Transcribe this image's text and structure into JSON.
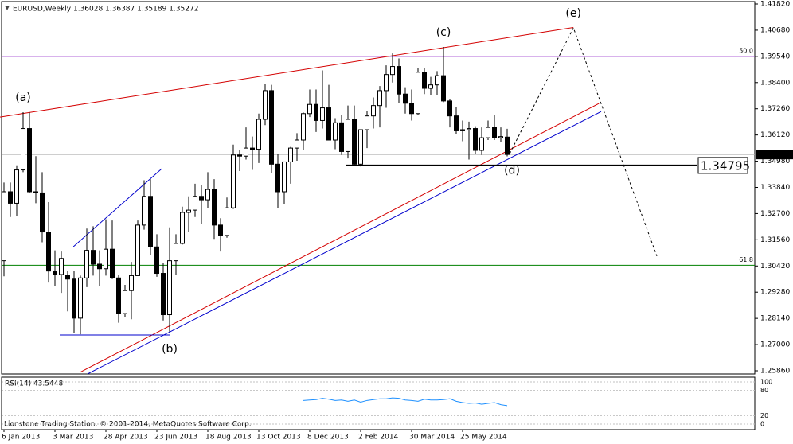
{
  "chart_data": [
    {
      "type": "candlestick",
      "title": "EURUSD,Weekly  1.36028 1.36387 1.35189 1.35272",
      "categories": [
        "6 Jan 2013",
        null,
        null,
        null,
        null,
        null,
        null,
        null,
        "3 Mar 2013",
        null,
        null,
        null,
        null,
        null,
        null,
        null,
        "28 Apr 2013",
        null,
        null,
        null,
        null,
        null,
        null,
        null,
        "23 Jun 2013",
        null,
        null,
        null,
        null,
        null,
        null,
        null,
        "18 Aug 2013",
        null,
        null,
        null,
        null,
        null,
        null,
        null,
        "13 Oct 2013",
        null,
        null,
        null,
        null,
        null,
        null,
        null,
        "8 Dec 2013",
        null,
        null,
        null,
        null,
        null,
        null,
        null,
        "2 Feb 2014",
        null,
        null,
        null,
        null,
        null,
        null,
        null,
        "30 Mar 2014",
        null,
        null,
        null,
        null,
        null,
        null,
        null,
        "25 May 2014",
        null,
        null,
        null,
        null,
        null,
        null,
        null
      ],
      "open": [
        1.3065,
        1.3365,
        1.3315,
        1.346,
        1.364,
        1.3365,
        1.336,
        1.319,
        1.302,
        1.3005,
        1.3,
        1.2985,
        1.2815,
        1.299,
        1.311,
        1.305,
        1.303,
        1.3115,
        1.299,
        1.2835,
        1.2935,
        1.3,
        1.322,
        1.3345,
        1.3125,
        1.301,
        1.283,
        1.3065,
        1.314,
        1.3275,
        1.3285,
        1.3345,
        1.333,
        1.3375,
        1.322,
        1.3175,
        1.3295,
        1.3525,
        1.352,
        1.3555,
        1.355,
        1.368,
        1.3805,
        1.3485,
        1.3365,
        1.3495,
        1.3555,
        1.359,
        1.3705,
        1.3745,
        1.3675,
        1.373,
        1.359,
        1.3665,
        1.354,
        1.368,
        1.3485,
        1.3635,
        1.3695,
        1.374,
        1.3805,
        1.3875,
        1.391,
        1.379,
        1.375,
        1.3705,
        1.3885,
        1.3815,
        1.383,
        1.387,
        1.376,
        1.3695,
        1.363,
        1.3635,
        1.364,
        1.3545,
        1.36,
        1.3645,
        1.36,
        1.36028
      ],
      "high": [
        1.3405,
        1.3405,
        1.348,
        1.3711,
        1.371,
        1.352,
        1.345,
        1.332,
        1.311,
        1.3105,
        1.302,
        1.302,
        1.3,
        1.3205,
        1.3215,
        1.311,
        1.3245,
        1.324,
        1.3005,
        1.296,
        1.306,
        1.324,
        1.3415,
        1.342,
        1.318,
        1.3055,
        1.321,
        1.318,
        1.33,
        1.3345,
        1.34,
        1.3395,
        1.345,
        1.342,
        1.325,
        1.334,
        1.357,
        1.3545,
        1.3645,
        1.3605,
        1.3705,
        1.3833,
        1.383,
        1.353,
        1.3495,
        1.356,
        1.362,
        1.371,
        1.381,
        1.381,
        1.3893,
        1.383,
        1.3685,
        1.37,
        1.374,
        1.374,
        1.362,
        1.3715,
        1.3775,
        1.3825,
        1.3915,
        1.3967,
        1.3945,
        1.382,
        1.381,
        1.3905,
        1.3905,
        1.3865,
        1.389,
        1.3995,
        1.377,
        1.3735,
        1.3675,
        1.367,
        1.365,
        1.3645,
        1.3675,
        1.37,
        1.3645,
        1.36387
      ],
      "low": [
        1.2997,
        1.3255,
        1.326,
        1.345,
        1.336,
        1.3315,
        1.3145,
        1.297,
        1.2955,
        1.2925,
        1.2845,
        1.275,
        1.2745,
        1.295,
        1.3,
        1.2955,
        1.3,
        1.2985,
        1.2795,
        1.282,
        1.281,
        1.3,
        1.32,
        1.309,
        1.2995,
        1.2805,
        1.2755,
        1.3005,
        1.3135,
        1.319,
        1.3255,
        1.3225,
        1.3295,
        1.316,
        1.3105,
        1.3165,
        1.329,
        1.3455,
        1.3505,
        1.346,
        1.349,
        1.3655,
        1.3445,
        1.3295,
        1.331,
        1.34,
        1.35,
        1.3545,
        1.369,
        1.3625,
        1.364,
        1.359,
        1.355,
        1.3525,
        1.351,
        1.348,
        1.3475,
        1.3555,
        1.364,
        1.3645,
        1.373,
        1.384,
        1.375,
        1.3705,
        1.3675,
        1.37,
        1.379,
        1.3785,
        1.3785,
        1.3755,
        1.3645,
        1.3615,
        1.3585,
        1.3505,
        1.353,
        1.3525,
        1.359,
        1.359,
        1.358,
        1.35189
      ],
      "close": [
        1.3365,
        1.3315,
        1.346,
        1.364,
        1.3365,
        1.336,
        1.319,
        1.302,
        1.3005,
        1.3075,
        1.2985,
        1.2815,
        1.299,
        1.311,
        1.305,
        1.303,
        1.3115,
        1.299,
        1.2835,
        1.2935,
        1.3,
        1.322,
        1.3345,
        1.3125,
        1.301,
        1.283,
        1.3065,
        1.314,
        1.3275,
        1.3285,
        1.3345,
        1.333,
        1.3375,
        1.322,
        1.3175,
        1.3295,
        1.3525,
        1.352,
        1.3555,
        1.355,
        1.368,
        1.3805,
        1.3485,
        1.3365,
        1.3495,
        1.3555,
        1.359,
        1.3705,
        1.3745,
        1.3675,
        1.373,
        1.359,
        1.3665,
        1.354,
        1.368,
        1.3485,
        1.3635,
        1.3695,
        1.374,
        1.3805,
        1.3875,
        1.391,
        1.379,
        1.375,
        1.3705,
        1.3885,
        1.3815,
        1.383,
        1.387,
        1.376,
        1.3695,
        1.363,
        1.3635,
        1.364,
        1.3545,
        1.36,
        1.3645,
        1.36,
        1.3605,
        1.35272
      ],
      "up_color": "#ffffff",
      "down_color": "#000000",
      "ylim": [
        1.2586,
        1.4182
      ],
      "yticks": [
        {
          "value": 1.2586,
          "label": "1.25860"
        },
        {
          "value": 1.27,
          "label": "1.27000"
        },
        {
          "value": 1.2814,
          "label": "1.28140"
        },
        {
          "value": 1.2928,
          "label": "1.29280"
        },
        {
          "value": 1.3042,
          "label": "1.30420"
        },
        {
          "value": 1.3156,
          "label": "1.31560"
        },
        {
          "value": 1.327,
          "label": "1.32700"
        },
        {
          "value": 1.3384,
          "label": "1.33840"
        },
        {
          "value": 1.3498,
          "label": "1.34980"
        },
        {
          "value": 1.3612,
          "label": "1.36120"
        },
        {
          "value": 1.3726,
          "label": "1.37260"
        },
        {
          "value": 1.384,
          "label": "1.38400"
        },
        {
          "value": 1.3954,
          "label": "1.39540"
        },
        {
          "value": 1.4068,
          "label": "1.40680"
        },
        {
          "value": 1.4182,
          "label": "1.41820"
        }
      ],
      "fib_levels": [
        {
          "label": "50.0",
          "value": 1.3954,
          "color": "#9933cc"
        },
        {
          "label": "61.8",
          "value": 1.3045,
          "color": "#008000"
        }
      ],
      "support": {
        "value": 1.34795,
        "x": [
          53.75,
          108.75
        ]
      },
      "trendlines": [
        {
          "color": "#d40000",
          "dash": false,
          "x": [
            -0.625,
            89.4
          ],
          "y": [
            1.369,
            1.408
          ]
        },
        {
          "color": "#d40000",
          "dash": false,
          "x": [
            11.9,
            93.4
          ],
          "y": [
            1.2579,
            1.3749
          ]
        },
        {
          "color": "#0000cc",
          "dash": false,
          "x": [
            13.1,
            93.75
          ],
          "y": [
            1.2572,
            1.3714
          ]
        },
        {
          "color": "#0000cc",
          "dash": false,
          "x": [
            10.9,
            24.75
          ],
          "y": [
            1.3126,
            1.3465
          ]
        },
        {
          "color": "#0000cc",
          "dash": false,
          "x": [
            8.75,
            26
          ],
          "y": [
            1.2742,
            1.2742
          ]
        },
        {
          "color": "#000000",
          "dash": true,
          "x": [
            79.4,
            89.4,
            102.5
          ],
          "y": [
            1.3531,
            1.4078,
            1.3085
          ]
        }
      ],
      "annotations": [
        {
          "text": "(a)",
          "x": 3,
          "y": 1.3711,
          "position": "above"
        },
        {
          "text": "(b)",
          "x": 26,
          "y": 1.2742,
          "position": "below"
        },
        {
          "text": "(c)",
          "x": 69,
          "y": 1.3995,
          "position": "above"
        },
        {
          "text": "(d)",
          "x": 79.75,
          "y": 1.3519,
          "position": "below"
        },
        {
          "text": "(e)",
          "x": 89.4,
          "y": 1.4078,
          "position": "above"
        }
      ]
    },
    {
      "type": "line",
      "title": "RSI(14) 43.5448",
      "values": [
        null,
        null,
        null,
        null,
        null,
        null,
        null,
        null,
        null,
        null,
        null,
        null,
        null,
        null,
        null,
        null,
        null,
        null,
        null,
        null,
        null,
        null,
        null,
        null,
        null,
        null,
        null,
        null,
        null,
        null,
        null,
        null,
        null,
        null,
        null,
        null,
        null,
        null,
        null,
        null,
        null,
        null,
        null,
        null,
        null,
        null,
        null,
        56,
        57,
        58,
        61,
        59,
        56,
        57,
        54,
        57,
        52,
        56,
        58,
        60,
        60,
        62,
        61,
        57,
        56,
        54,
        59,
        57,
        57,
        58,
        60,
        54,
        51,
        49,
        50,
        47,
        49,
        51,
        46,
        43.5448
      ],
      "color": "#1e90ff",
      "ylim": [
        0,
        100
      ],
      "yticks": [
        0,
        20,
        80,
        100
      ]
    }
  ],
  "footer": "Lionstone Trading Station, © 2001-2014, MetaQuotes Software Corp."
}
